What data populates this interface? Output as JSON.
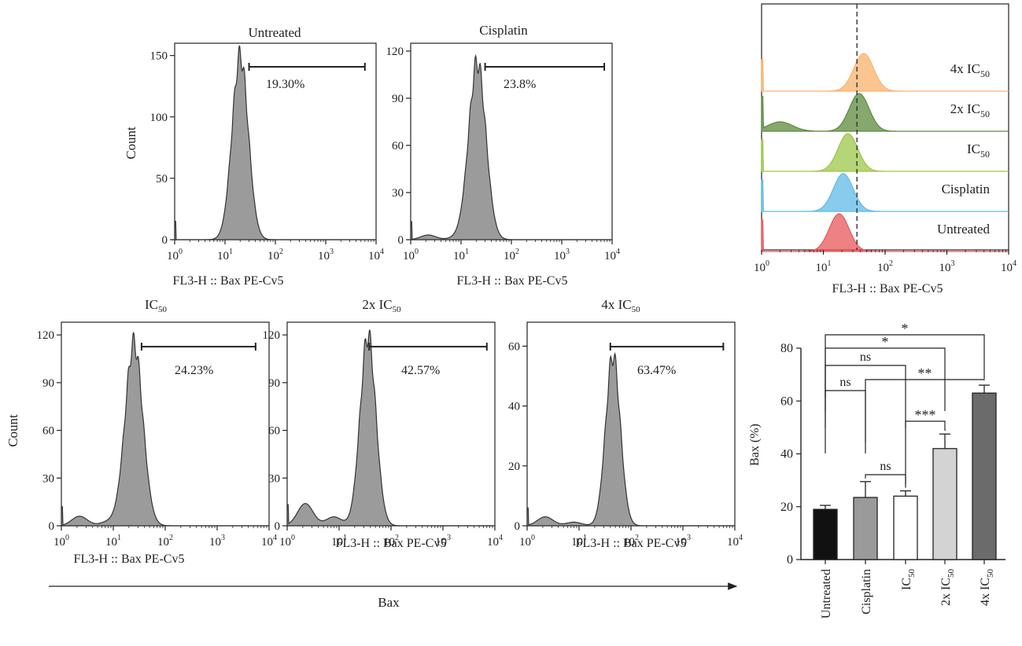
{
  "histograms": [
    {
      "title": "Untreated",
      "title_sub": "",
      "title_suffix": "",
      "gate_label": "19.30%",
      "gate_value": 19.3,
      "xlabel": "FL3-H :: Bax PE-Cv5",
      "ylabel": "Count",
      "yticks": [
        0,
        50,
        100,
        150
      ],
      "ymax": 160,
      "peak_x": 20,
      "peak_count": 150,
      "spread": 0.16,
      "shoulder": 0,
      "gate_range": [
        30,
        6000
      ]
    },
    {
      "title": "Cisplatin",
      "title_sub": "",
      "title_suffix": "",
      "gate_label": "23.8%",
      "gate_value": 23.8,
      "xlabel": "FL3-H :: Bax PE-Cv5",
      "ylabel": "",
      "yticks": [
        0,
        30,
        60,
        90,
        120
      ],
      "ymax": 125,
      "peak_x": 21,
      "peak_count": 113,
      "spread": 0.17,
      "shoulder": 3,
      "gate_range": [
        30,
        7000
      ]
    },
    {
      "title": "IC",
      "title_sub": "50",
      "title_suffix": "",
      "gate_label": "24.23%",
      "gate_value": 24.23,
      "xlabel": "FL3-H :: Bax PE-Cv5",
      "ylabel": "Count",
      "yticks": [
        0,
        30,
        60,
        90,
        120
      ],
      "ymax": 128,
      "peak_x": 25,
      "peak_count": 115,
      "spread": 0.17,
      "shoulder": 6,
      "gate_range": [
        35,
        5500
      ]
    },
    {
      "title": "2x IC",
      "title_sub": "50",
      "title_suffix": "",
      "gate_label": "42.57%",
      "gate_value": 42.57,
      "xlabel": "FL3-H :: Bax PE-Cv5",
      "ylabel": "",
      "yticks": [
        0,
        30,
        60,
        90,
        120
      ],
      "ymax": 128,
      "peak_x": 36,
      "peak_count": 120,
      "spread": 0.15,
      "shoulder": 14,
      "gate_range": [
        38,
        7000
      ]
    },
    {
      "title": "4x IC",
      "title_sub": "50",
      "title_suffix": "",
      "gate_label": "63.47%",
      "gate_value": 63.47,
      "xlabel": "FL3-H :: Bax PE-Cv5",
      "ylabel": "",
      "yticks": [
        0,
        20,
        40,
        60
      ],
      "ymax": 68,
      "peak_x": 45,
      "peak_count": 57,
      "spread": 0.14,
      "shoulder": 3,
      "gate_range": [
        40,
        6000
      ]
    }
  ],
  "x_axis_ticks": [
    "10",
    "10",
    "10",
    "10",
    "10"
  ],
  "x_axis_exponents": [
    "0",
    "1",
    "2",
    "3",
    "4"
  ],
  "bax_arrow_label": "Bax",
  "overlay": {
    "xlabel": "FL3-H :: Bax PE-Cv5",
    "dashed_line_x": 35,
    "tracks": [
      {
        "label": "4x IC",
        "sub": "50",
        "color": "#f9b26b",
        "peak_x": 45
      },
      {
        "label": "2x IC",
        "sub": "50",
        "color": "#5e8a3c",
        "peak_x": 38
      },
      {
        "label": "IC",
        "sub": "50",
        "color": "#9cc74a",
        "peak_x": 25
      },
      {
        "label": "Cisplatin",
        "sub": "",
        "color": "#62b9e6",
        "peak_x": 21
      },
      {
        "label": "Untreated",
        "sub": "",
        "color": "#e8575a",
        "peak_x": 18
      }
    ]
  },
  "chart_data": {
    "type": "bar",
    "categories": [
      "Untreated",
      "Cisplatin",
      "IC50",
      "2x IC50",
      "4x IC50"
    ],
    "category_labels": [
      {
        "main": "Untreated",
        "sub": ""
      },
      {
        "main": "Cisplatin",
        "sub": ""
      },
      {
        "main": "IC",
        "sub": "50"
      },
      {
        "main": "2x IC",
        "sub": "50"
      },
      {
        "main": "4x IC",
        "sub": "50"
      }
    ],
    "values": [
      19,
      23.5,
      24,
      42,
      63
    ],
    "errors": [
      1.5,
      6,
      2,
      5.5,
      3
    ],
    "colors": [
      "#111111",
      "#9a9a9a",
      "#ffffff",
      "#d3d3d3",
      "#6b6b6b"
    ],
    "ylabel": "Bax (%)",
    "ylim": [
      0,
      80
    ],
    "yticks": [
      0,
      20,
      40,
      60,
      80
    ],
    "significance": [
      {
        "from": 0,
        "to": 4,
        "label": "*"
      },
      {
        "from": 0,
        "to": 3,
        "label": "*"
      },
      {
        "from": 0,
        "to": 2,
        "label": "ns"
      },
      {
        "from": 1,
        "to": 4,
        "label": "**"
      },
      {
        "from": 0,
        "to": 1,
        "label": "ns"
      },
      {
        "from": 2,
        "to": 3,
        "label": "***"
      },
      {
        "from": 1,
        "to": 2,
        "label": "ns"
      }
    ]
  }
}
